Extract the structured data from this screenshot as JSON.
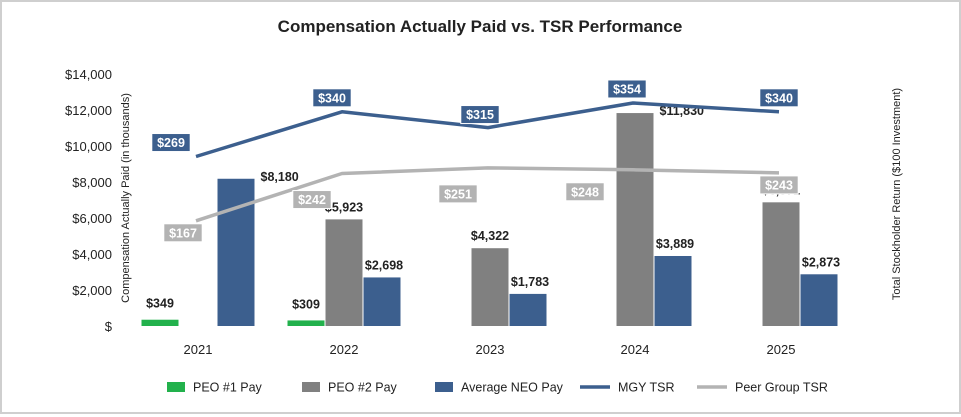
{
  "chart_data": {
    "type": "bar",
    "title": "Compensation Actually Paid vs. TSR Performance",
    "categories": [
      "2021",
      "2022",
      "2023",
      "2024",
      "2025"
    ],
    "ylabel": "Compensation Actually Paid (in thousands)",
    "y2label": "Total Stockholder Return ($100 Investment)",
    "ylim": [
      0,
      14000
    ],
    "yticks": [
      "$",
      "$2,000",
      "$4,000",
      "$6,000",
      "$8,000",
      "$10,000",
      "$12,000",
      "$14,000"
    ],
    "y2lim": [
      0,
      400
    ],
    "grid": false,
    "legend_position": "bottom",
    "bar_series": [
      {
        "name": "PEO #1 Pay",
        "color": "#22b14c",
        "values": [
          349,
          309,
          null,
          null,
          null
        ],
        "labels": [
          "$349",
          "$309",
          "",
          "",
          ""
        ]
      },
      {
        "name": "PEO #2 Pay",
        "color": "#808080",
        "values": [
          null,
          5923,
          4322,
          11830,
          6871
        ],
        "labels": [
          "",
          "$5,923",
          "$4,322",
          "$11,830",
          "$6,871"
        ]
      },
      {
        "name": "Average NEO Pay",
        "color": "#3c5f8e",
        "values": [
          8180,
          2698,
          1783,
          3889,
          2873
        ],
        "labels": [
          "$8,180",
          "$2,698",
          "$1,783",
          "$3,889",
          "$2,873"
        ]
      }
    ],
    "line_series": [
      {
        "name": "MGY TSR",
        "color": "#3c5f8e",
        "values": [
          269,
          340,
          315,
          354,
          340
        ],
        "labels": [
          "$269",
          "$340",
          "$315",
          "$354",
          "$340"
        ]
      },
      {
        "name": "Peer Group TSR",
        "color": "#b3b3b3",
        "values": [
          167,
          242,
          251,
          248,
          243
        ],
        "labels": [
          "$167",
          "$242",
          "$251",
          "$248",
          "$243"
        ]
      }
    ]
  }
}
